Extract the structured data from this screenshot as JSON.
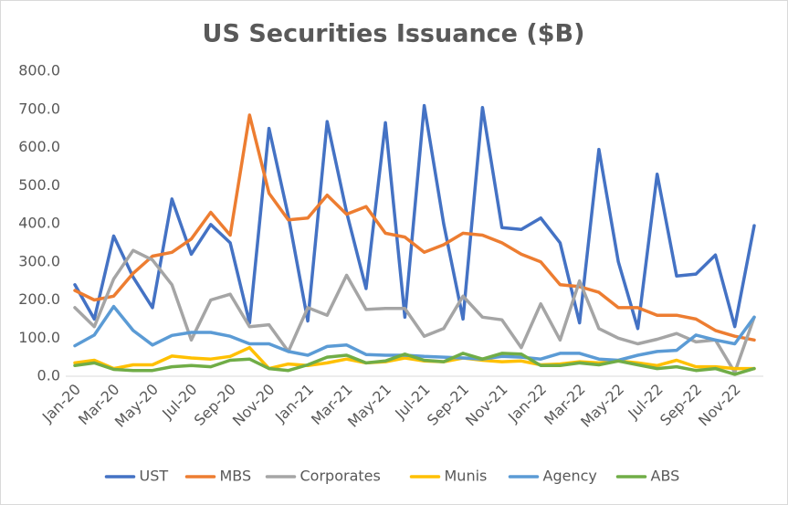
{
  "chart_data": {
    "type": "line",
    "title": "US Securities Issuance ($B)",
    "categories": [
      "Jan-20",
      null,
      "Mar-20",
      null,
      "May-20",
      null,
      "Jul-20",
      null,
      "Sep-20",
      null,
      "Nov-20",
      null,
      "Jan-21",
      null,
      "Mar-21",
      null,
      "May-21",
      null,
      "Jul-21",
      null,
      "Sep-21",
      null,
      "Nov-21",
      null,
      "Jan-22",
      null,
      "Mar-22",
      null,
      "May-22",
      null,
      "Jul-22",
      null,
      "Sep-22",
      null,
      "Nov-22",
      null
    ],
    "series": [
      {
        "name": "UST",
        "color": "#4472c4",
        "values": [
          240,
          150,
          368,
          260,
          180,
          465,
          320,
          398,
          350,
          140,
          650,
          420,
          145,
          668,
          430,
          230,
          665,
          155,
          710,
          400,
          150,
          705,
          390,
          385,
          415,
          350,
          140,
          595,
          300,
          125,
          530,
          263,
          268,
          318,
          130,
          395
        ]
      },
      {
        "name": "MBS",
        "color": "#ed7d31",
        "values": [
          225,
          200,
          210,
          270,
          315,
          325,
          360,
          430,
          370,
          685,
          480,
          410,
          415,
          475,
          425,
          445,
          375,
          365,
          325,
          345,
          375,
          370,
          350,
          320,
          300,
          240,
          235,
          220,
          180,
          180,
          160,
          160,
          150,
          120,
          105,
          95
        ]
      },
      {
        "name": "Corporates",
        "color": "#a5a5a5",
        "values": [
          180,
          130,
          255,
          330,
          305,
          240,
          95,
          200,
          215,
          130,
          135,
          65,
          180,
          160,
          265,
          175,
          178,
          178,
          105,
          125,
          210,
          155,
          148,
          75,
          190,
          95,
          250,
          125,
          100,
          85,
          97,
          112,
          90,
          95,
          10,
          155
        ]
      },
      {
        "name": "Munis",
        "color": "#ffc000",
        "values": [
          35,
          42,
          20,
          30,
          30,
          53,
          48,
          45,
          52,
          75,
          20,
          32,
          28,
          35,
          45,
          35,
          38,
          48,
          40,
          38,
          48,
          42,
          38,
          40,
          30,
          32,
          38,
          35,
          40,
          35,
          28,
          42,
          25,
          25,
          20,
          20
        ]
      },
      {
        "name": "Agency",
        "color": "#5b9bd5",
        "values": [
          80,
          108,
          183,
          120,
          82,
          107,
          115,
          115,
          105,
          85,
          85,
          65,
          55,
          78,
          82,
          57,
          55,
          55,
          52,
          50,
          48,
          45,
          52,
          50,
          45,
          60,
          60,
          45,
          42,
          55,
          65,
          68,
          108,
          95,
          85,
          155
        ]
      },
      {
        "name": "ABS",
        "color": "#70ad47",
        "values": [
          28,
          35,
          18,
          15,
          15,
          25,
          28,
          25,
          42,
          45,
          20,
          15,
          30,
          50,
          55,
          35,
          40,
          58,
          42,
          38,
          60,
          45,
          60,
          58,
          28,
          28,
          35,
          30,
          40,
          30,
          20,
          25,
          15,
          20,
          5,
          20
        ]
      }
    ],
    "ylim": [
      0,
      800
    ],
    "yticks": [
      {
        "value": 0,
        "label": "0.0"
      },
      {
        "value": 100,
        "label": "100.0"
      },
      {
        "value": 200,
        "label": "200.0"
      },
      {
        "value": 300,
        "label": "300.0"
      },
      {
        "value": 400,
        "label": "400.0"
      },
      {
        "value": 500,
        "label": "500.0"
      },
      {
        "value": 600,
        "label": "600.0"
      },
      {
        "value": 700,
        "label": "700.0"
      },
      {
        "value": 800,
        "label": "800.0"
      }
    ],
    "grid": false,
    "legend": "bottom"
  }
}
